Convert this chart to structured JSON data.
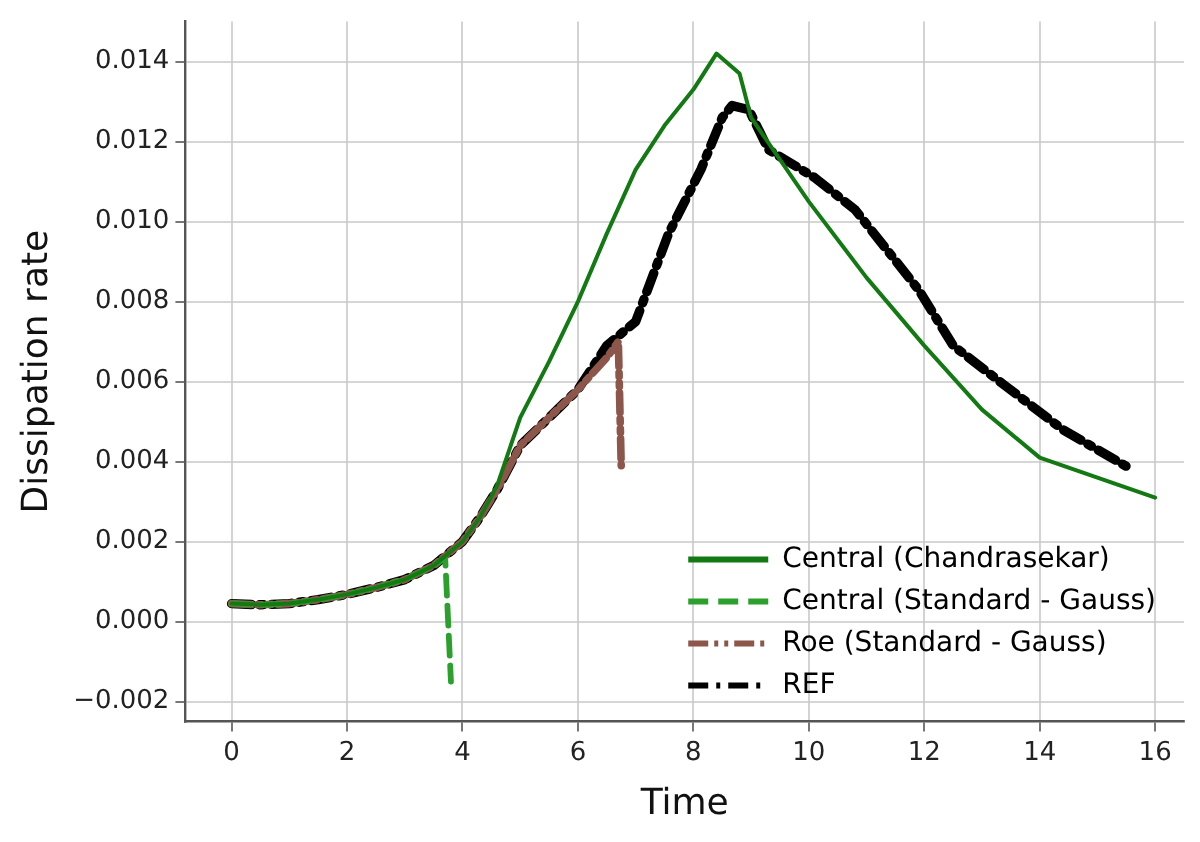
{
  "chart_data": {
    "type": "line",
    "xlabel": "Time",
    "ylabel": "Dissipation rate",
    "xlim": [
      -0.8,
      16.5
    ],
    "ylim": [
      -0.0025,
      0.015
    ],
    "xticks": [
      0,
      2,
      4,
      6,
      8,
      10,
      12,
      14,
      16
    ],
    "yticks": [
      {
        "value": -0.002,
        "label": "−0.002"
      },
      {
        "value": 0,
        "label": "0.000"
      },
      {
        "value": 0.002,
        "label": "0.002"
      },
      {
        "value": 0.004,
        "label": "0.004"
      },
      {
        "value": 0.006,
        "label": "0.006"
      },
      {
        "value": 0.008,
        "label": "0.008"
      },
      {
        "value": 0.01,
        "label": "0.010"
      },
      {
        "value": 0.012,
        "label": "0.012"
      },
      {
        "value": 0.014,
        "label": "0.014"
      }
    ],
    "grid": true,
    "legend": "bottom right",
    "marker": "none",
    "series": [
      {
        "name": "Central (Chandrasekar)",
        "color": "#137a13",
        "line_style": "solid",
        "x": [
          0,
          0.5,
          1,
          1.5,
          2,
          2.5,
          3,
          3.5,
          4,
          4.3,
          4.6,
          5,
          5.5,
          6,
          6.5,
          7,
          7.5,
          8,
          8.4,
          8.8,
          9,
          10,
          11,
          12,
          13,
          14,
          15,
          16
        ],
        "values": [
          0.00045,
          0.00042,
          0.00045,
          0.00055,
          0.00068,
          0.00085,
          0.00105,
          0.0014,
          0.002,
          0.0026,
          0.0034,
          0.0051,
          0.0065,
          0.008,
          0.0097,
          0.0113,
          0.0124,
          0.0133,
          0.0142,
          0.0137,
          0.0126,
          0.0105,
          0.0086,
          0.0069,
          0.0053,
          0.0041,
          0.0036,
          0.0031
        ]
      },
      {
        "name": "Central (Standard - Gauss)",
        "color": "#2ca02c",
        "line_style": "dashed",
        "x": [
          0,
          0.5,
          1,
          1.5,
          2,
          2.5,
          3,
          3.5,
          3.7,
          3.8
        ],
        "values": [
          0.00045,
          0.00042,
          0.00045,
          0.00055,
          0.00068,
          0.00085,
          0.00105,
          0.0014,
          0.0016,
          -0.0015
        ]
      },
      {
        "name": "Roe (Standard - Gauss)",
        "color": "#8c564b",
        "line_style": "dashdotdot",
        "x": [
          0,
          0.5,
          1,
          1.5,
          2,
          2.5,
          3,
          3.5,
          4,
          4.3,
          4.6,
          5,
          5.5,
          6,
          6.5,
          6.7,
          6.75
        ],
        "values": [
          0.00045,
          0.00042,
          0.00045,
          0.00055,
          0.00068,
          0.00085,
          0.00105,
          0.0014,
          0.002,
          0.0026,
          0.0033,
          0.0044,
          0.0051,
          0.0058,
          0.0066,
          0.007,
          0.0039
        ]
      },
      {
        "name": "REF",
        "color": "#000000",
        "line_style": "dashdot",
        "x": [
          0,
          0.5,
          1,
          1.5,
          2,
          2.5,
          3,
          3.5,
          4,
          4.3,
          4.6,
          5,
          5.5,
          6,
          6.5,
          7,
          7.57,
          8.13,
          8.5,
          8.67,
          8.96,
          9.3,
          10.1,
          10.8,
          11.9,
          12.5,
          13.4,
          14.4,
          15.6
        ],
        "values": [
          0.00045,
          0.00042,
          0.00045,
          0.00055,
          0.00068,
          0.00085,
          0.00105,
          0.0014,
          0.002,
          0.0026,
          0.0033,
          0.0044,
          0.0051,
          0.0058,
          0.0069,
          0.0075,
          0.0097,
          0.0113,
          0.0126,
          0.0129,
          0.0128,
          0.0118,
          0.0111,
          0.0103,
          0.0083,
          0.0069,
          0.0059,
          0.0048,
          0.0038
        ]
      }
    ]
  }
}
